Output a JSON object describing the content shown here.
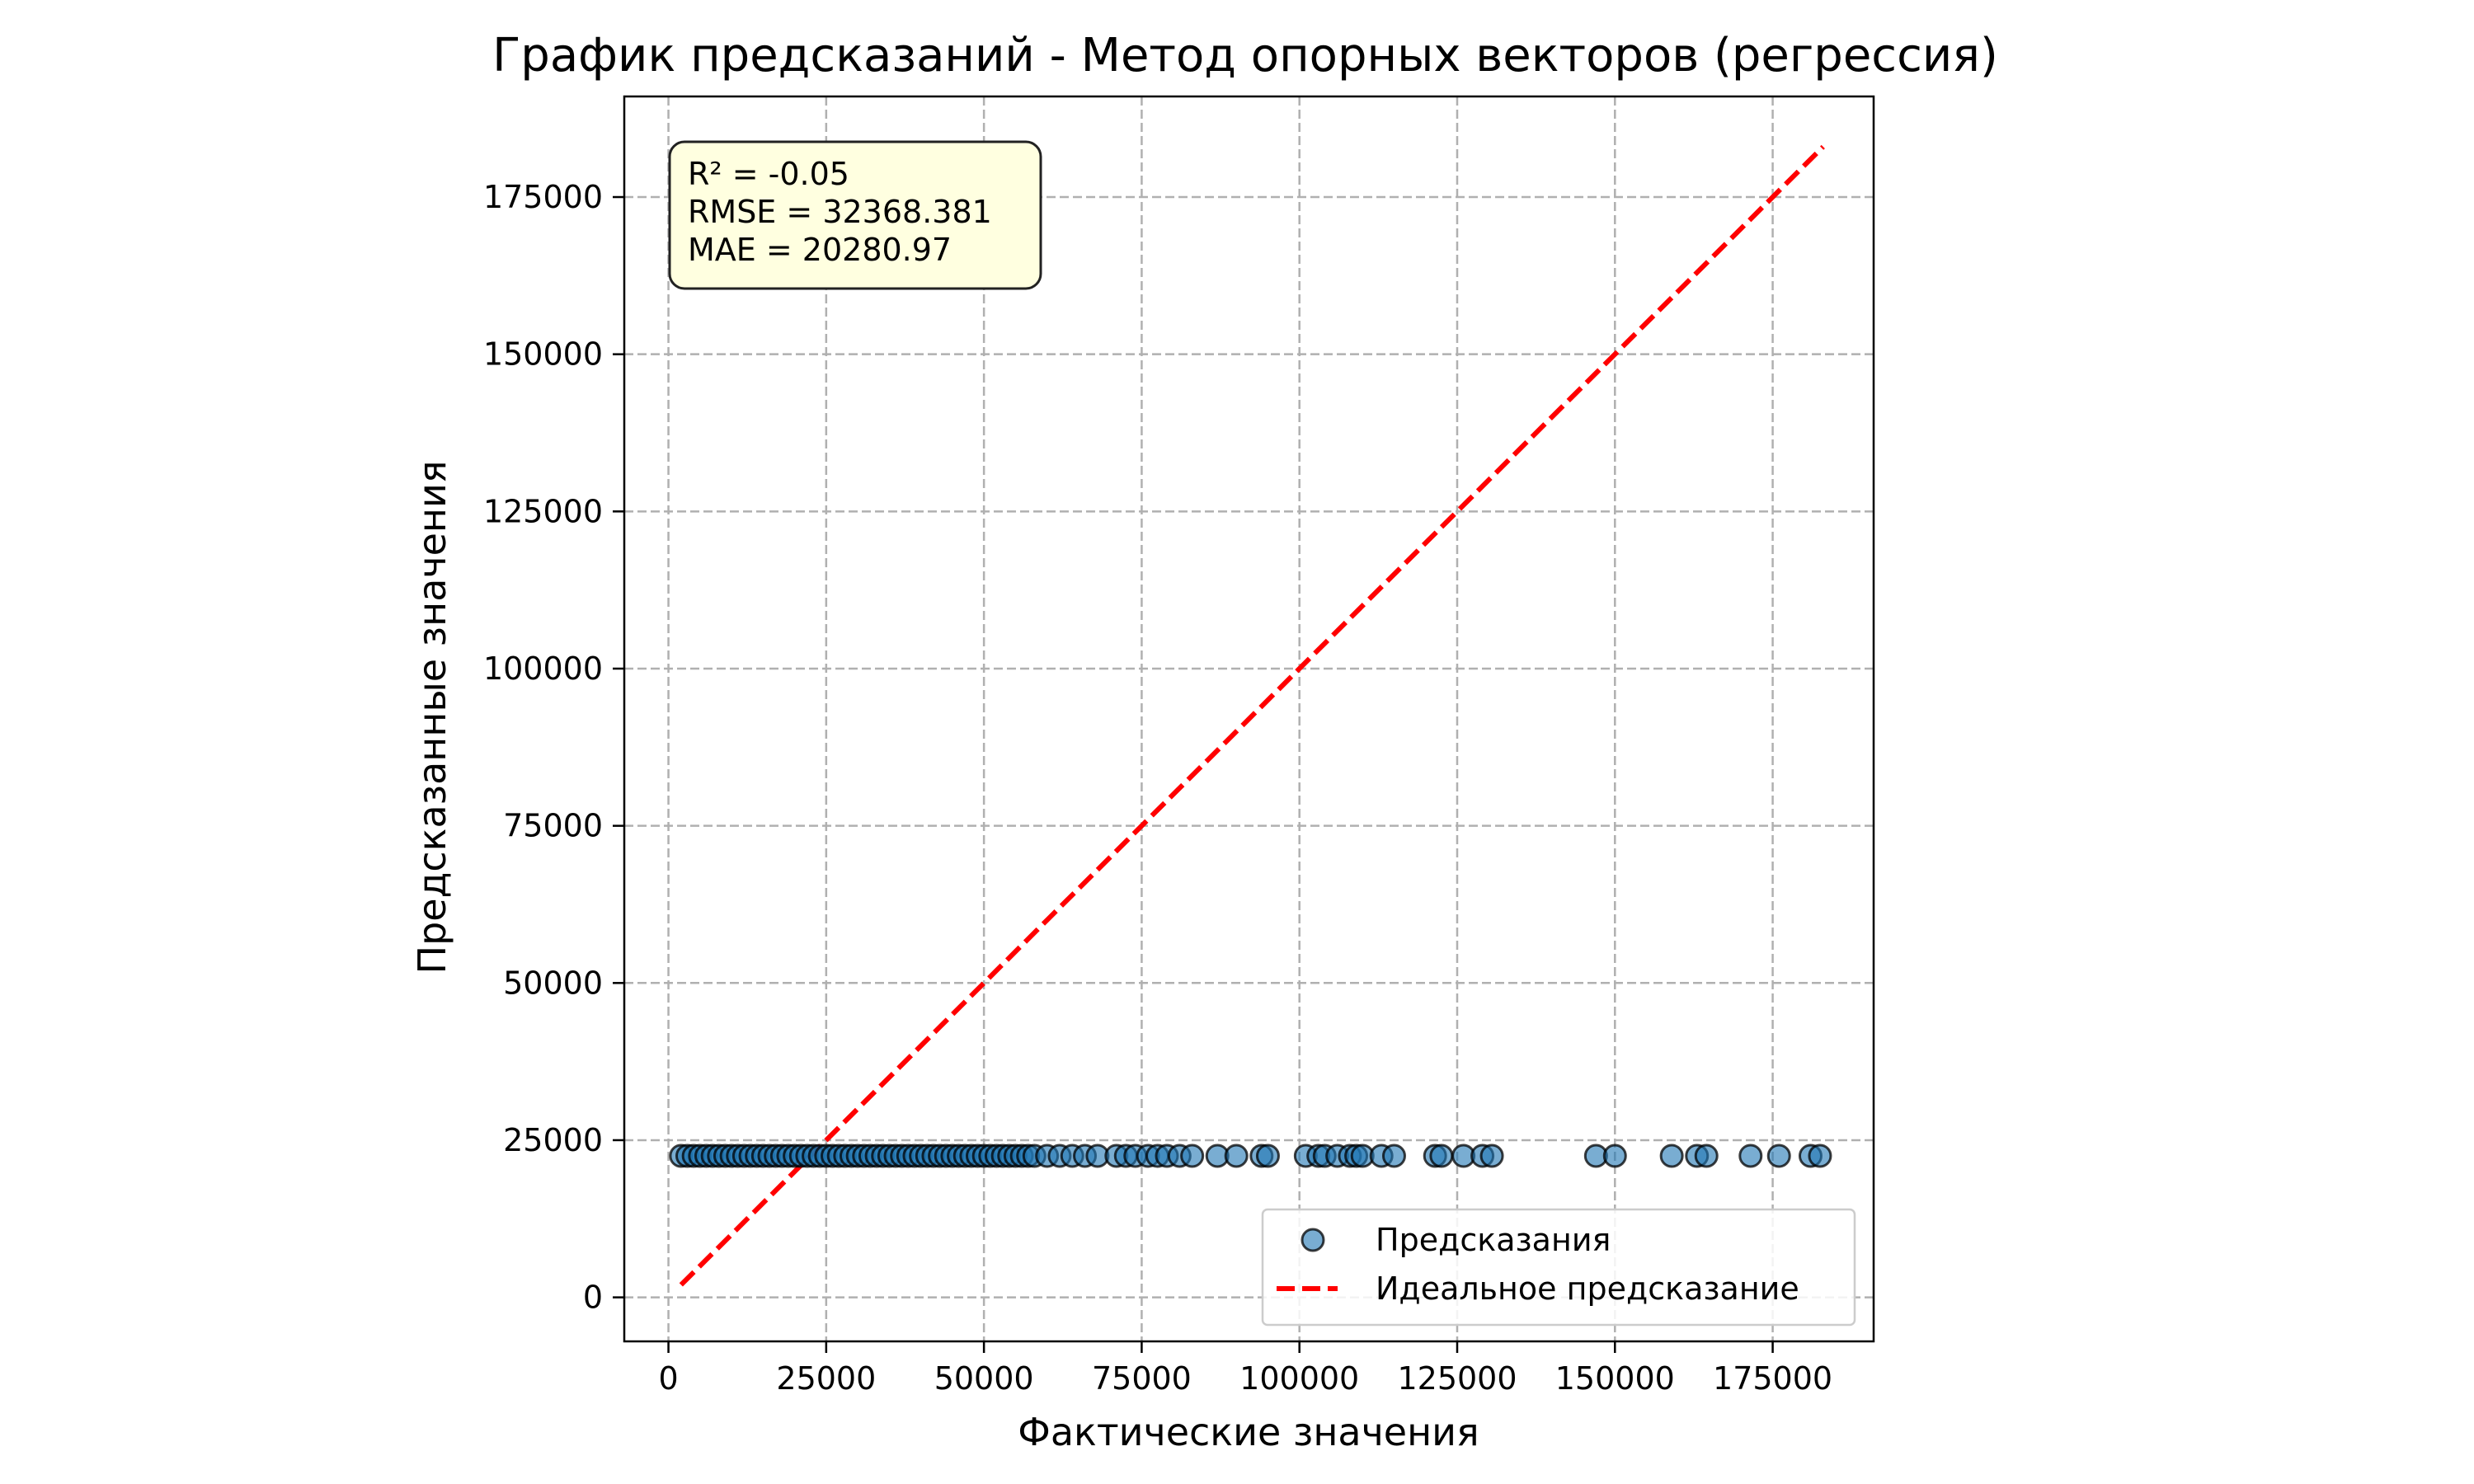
{
  "chart_data": {
    "type": "scatter",
    "title": "График предсказаний - Метод опорных векторов (регрессия)",
    "xlabel": "Фактические значения",
    "ylabel": "Предсказанные значения",
    "xlim": [
      -7000,
      191000
    ],
    "ylim": [
      -7000,
      191000
    ],
    "xticks": [
      0,
      25000,
      50000,
      75000,
      100000,
      125000,
      150000,
      175000
    ],
    "yticks": [
      0,
      25000,
      50000,
      75000,
      100000,
      125000,
      150000,
      175000
    ],
    "grid": true,
    "stats_box": [
      "R² = -0.05",
      "RMSE = 32368.381",
      "MAE = 20280.97"
    ],
    "legend_position": "lower right",
    "colors": {
      "points": "#1f77b4",
      "ideal_line": "#ff0000",
      "stats_box_bg": "#ffffe0"
    },
    "series": [
      {
        "name": "Предсказания",
        "kind": "scatter",
        "x": [
          2000,
          3000,
          4000,
          5000,
          6000,
          7000,
          8000,
          9000,
          10000,
          11000,
          12000,
          13000,
          14000,
          15000,
          16000,
          17000,
          18000,
          19000,
          20000,
          21000,
          22000,
          23000,
          24000,
          25000,
          26000,
          27000,
          28000,
          29000,
          30000,
          31000,
          32000,
          33000,
          34000,
          35000,
          36000,
          37000,
          38000,
          39000,
          40000,
          41000,
          42000,
          43000,
          44000,
          45000,
          46000,
          47000,
          48000,
          49000,
          50000,
          51000,
          52000,
          53000,
          54000,
          55000,
          56000,
          57000,
          58000,
          60000,
          62000,
          64000,
          66000,
          68000,
          71000,
          72500,
          74000,
          76000,
          77500,
          79000,
          81000,
          83000,
          87000,
          90000,
          94000,
          95000,
          101000,
          103000,
          104000,
          106000,
          108000,
          109000,
          110000,
          113000,
          115000,
          121500,
          122500,
          126000,
          129000,
          130500,
          147000,
          150000,
          159000,
          163000,
          164500,
          171500,
          176000,
          181000,
          182500
        ],
        "y": [
          22500,
          22500,
          22500,
          22500,
          22500,
          22500,
          22500,
          22500,
          22500,
          22500,
          22500,
          22500,
          22500,
          22500,
          22500,
          22500,
          22500,
          22500,
          22500,
          22500,
          22500,
          22500,
          22500,
          22500,
          22500,
          22500,
          22500,
          22500,
          22500,
          22500,
          22500,
          22500,
          22500,
          22500,
          22500,
          22500,
          22500,
          22500,
          22500,
          22500,
          22500,
          22500,
          22500,
          22500,
          22500,
          22500,
          22500,
          22500,
          22500,
          22500,
          22500,
          22500,
          22500,
          22500,
          22500,
          22500,
          22500,
          22500,
          22500,
          22500,
          22500,
          22500,
          22500,
          22500,
          22500,
          22500,
          22500,
          22500,
          22500,
          22500,
          22500,
          22500,
          22500,
          22500,
          22500,
          22500,
          22500,
          22500,
          22500,
          22500,
          22500,
          22500,
          22500,
          22500,
          22500,
          22500,
          22500,
          22500,
          22500,
          22500,
          22500,
          22500,
          22500,
          22500,
          22500,
          22500,
          22500
        ]
      },
      {
        "name": "Идеальное предсказание",
        "kind": "line",
        "x": [
          2000,
          183000
        ],
        "y": [
          2000,
          183000
        ]
      }
    ]
  }
}
